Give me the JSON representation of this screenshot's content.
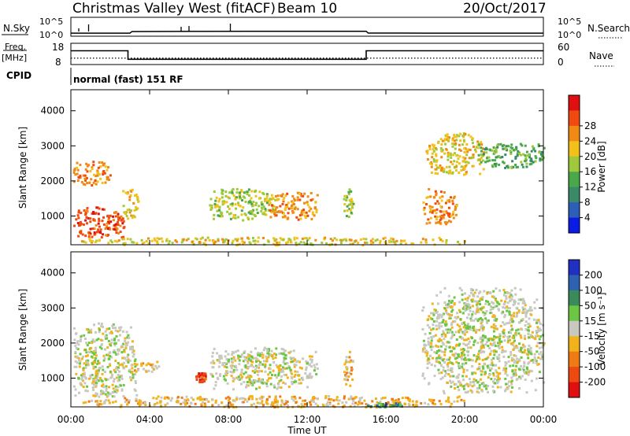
{
  "header": {
    "station": "Christmas Valley West (fitACF)",
    "beam": "Beam 10",
    "date": "20/Oct/2017"
  },
  "top_panels": {
    "nsky_label": "N.Sky",
    "nsearch_label": "N.Search",
    "ticks_left_upper": "10^5",
    "ticks_left_lower": "10^0",
    "ticks_right_upper": "10^5",
    "ticks_right_lower": "10^0",
    "freq_label_1": "Freq.",
    "freq_label_2": "[MHz]",
    "freq_ticks": [
      "18",
      "8"
    ],
    "nave_label": "Nave",
    "nave_ticks": [
      "60",
      "0"
    ],
    "cpid_label": "CPID",
    "cpid_text": "normal (fast) 151 RF"
  },
  "axes": {
    "xlabel": "Time UT",
    "ylabel": "Slant Range [km]",
    "xticks": [
      "00:00",
      "04:00",
      "08:00",
      "12:00",
      "16:00",
      "20:00",
      "00:00"
    ],
    "yticks": [
      "1000",
      "2000",
      "3000",
      "4000"
    ]
  },
  "colorbars": {
    "power": {
      "label": "Power [dB]",
      "ticks": [
        "4",
        "8",
        "12",
        "16",
        "20",
        "24",
        "28"
      ],
      "colors": [
        "#0a1be6",
        "#2d5fb8",
        "#3a8a6a",
        "#48a84a",
        "#9ec93a",
        "#f2c21a",
        "#f08a14",
        "#f04a10",
        "#e01010"
      ]
    },
    "velocity": {
      "label": "Velocity [m s⁻¹]",
      "ticks": [
        "200",
        "100",
        "50",
        "15",
        "-15",
        "-50",
        "-100",
        "-200"
      ],
      "colors": [
        "#2030c0",
        "#2e62b0",
        "#3b8a5a",
        "#6cc644",
        "#c8c8c0",
        "#f2b21a",
        "#f07a14",
        "#ec4a10",
        "#e01010"
      ]
    }
  },
  "chart_data": [
    {
      "type": "line",
      "title": "N.Sky / N.Search",
      "x_range_hours": [
        0,
        24
      ],
      "series": [
        {
          "name": "N.Sky",
          "x": [
            0,
            1,
            2,
            3,
            3.1,
            6,
            9,
            12,
            15,
            15.1,
            18,
            21,
            24
          ],
          "values": [
            5,
            5,
            5,
            5,
            40,
            50,
            55,
            60,
            60,
            6,
            5,
            5,
            5
          ]
        }
      ]
    },
    {
      "type": "line",
      "title": "Freq. [MHz] / Nave",
      "x_range_hours": [
        0,
        24
      ],
      "series": [
        {
          "name": "Freq.",
          "x": [
            0,
            2.9,
            2.9,
            15.0,
            15.0,
            24
          ],
          "values": [
            14.5,
            14.5,
            10.5,
            10.5,
            14.5,
            14.5
          ]
        },
        {
          "name": "Nave",
          "x": [
            0,
            24
          ],
          "values": [
            18,
            18
          ]
        }
      ]
    },
    {
      "type": "heatmap",
      "title": "Power [dB]",
      "x_range_hours": [
        0,
        24
      ],
      "y_range_km": [
        180,
        4600
      ],
      "blobs": [
        {
          "x": [
            0.1,
            2.7
          ],
          "y": [
            400,
            1300
          ],
          "db": 26
        },
        {
          "x": [
            0.1,
            2.0
          ],
          "y": [
            1900,
            2600
          ],
          "db": 22
        },
        {
          "x": [
            2.6,
            3.4
          ],
          "y": [
            900,
            1800
          ],
          "db": 20
        },
        {
          "x": [
            7.0,
            10.5
          ],
          "y": [
            900,
            1800
          ],
          "db": 16
        },
        {
          "x": [
            10.0,
            12.5
          ],
          "y": [
            900,
            1700
          ],
          "db": 24
        },
        {
          "x": [
            13.8,
            14.3
          ],
          "y": [
            1000,
            1800
          ],
          "db": 14
        },
        {
          "x": [
            17.8,
            19.6
          ],
          "y": [
            800,
            1800
          ],
          "db": 22
        },
        {
          "x": [
            18.0,
            21.0
          ],
          "y": [
            2200,
            3400
          ],
          "db": 20
        },
        {
          "x": [
            20.5,
            24.0
          ],
          "y": [
            2400,
            3100
          ],
          "db": 12
        },
        {
          "x": [
            0.5,
            20.0
          ],
          "y": [
            200,
            420
          ],
          "db": 18
        }
      ]
    },
    {
      "type": "heatmap",
      "title": "Velocity [m s⁻¹]",
      "x_range_hours": [
        0,
        24
      ],
      "y_range_km": [
        180,
        4600
      ],
      "blobs": [
        {
          "x": [
            0.1,
            3.3
          ],
          "y": [
            500,
            2600
          ],
          "v": 0
        },
        {
          "x": [
            3.0,
            4.5
          ],
          "y": [
            1200,
            1500
          ],
          "v": -30
        },
        {
          "x": [
            6.3,
            6.8
          ],
          "y": [
            900,
            1200
          ],
          "v": -120
        },
        {
          "x": [
            7.0,
            12.5
          ],
          "y": [
            700,
            1900
          ],
          "v": 0
        },
        {
          "x": [
            13.8,
            14.3
          ],
          "y": [
            800,
            1800
          ],
          "v": -40
        },
        {
          "x": [
            17.8,
            24.0
          ],
          "y": [
            600,
            3600
          ],
          "v": 0
        },
        {
          "x": [
            0.5,
            20.0
          ],
          "y": [
            200,
            520
          ],
          "v": -40
        },
        {
          "x": [
            15.0,
            17.0
          ],
          "y": [
            200,
            320
          ],
          "v": 40
        }
      ]
    }
  ]
}
